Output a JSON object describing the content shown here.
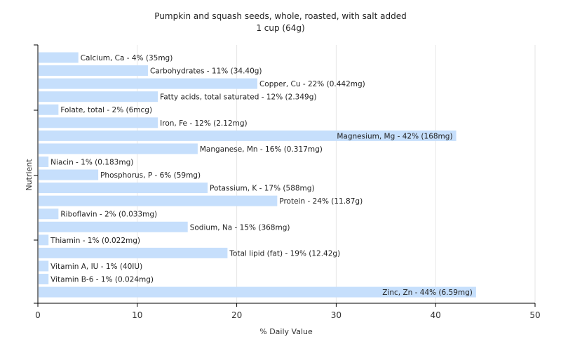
{
  "chart_data": {
    "type": "bar",
    "orientation": "horizontal",
    "title": "Pumpkin and squash seeds, whole, roasted, with salt added",
    "subtitle": "1 cup (64g)",
    "xlabel": "% Daily Value",
    "ylabel": "Nutrient",
    "xlim": [
      0,
      50
    ],
    "xticks": [
      0,
      10,
      20,
      30,
      40,
      50
    ],
    "grid": true,
    "bar_color": "#c6dffc",
    "categories": [
      "Calcium, Ca",
      "Carbohydrates",
      "Copper, Cu",
      "Fatty acids, total saturated",
      "Folate, total",
      "Iron, Fe",
      "Magnesium, Mg",
      "Manganese, Mn",
      "Niacin",
      "Phosphorus, P",
      "Potassium, K",
      "Protein",
      "Riboflavin",
      "Sodium, Na",
      "Thiamin",
      "Total lipid (fat)",
      "Vitamin A, IU",
      "Vitamin B-6",
      "Zinc, Zn"
    ],
    "values": [
      4,
      11,
      22,
      12,
      2,
      12,
      42,
      16,
      1,
      6,
      17,
      24,
      2,
      15,
      1,
      19,
      1,
      1,
      44
    ],
    "labels": [
      "Calcium, Ca - 4% (35mg)",
      "Carbohydrates - 11% (34.40g)",
      "Copper, Cu - 22% (0.442mg)",
      "Fatty acids, total saturated - 12% (2.349g)",
      "Folate, total - 2% (6mcg)",
      "Iron, Fe - 12% (2.12mg)",
      "Magnesium, Mg - 42% (168mg)",
      "Manganese, Mn - 16% (0.317mg)",
      "Niacin - 1% (0.183mg)",
      "Phosphorus, P - 6% (59mg)",
      "Potassium, K - 17% (588mg)",
      "Protein - 24% (11.87g)",
      "Riboflavin - 2% (0.033mg)",
      "Sodium, Na - 15% (368mg)",
      "Thiamin - 1% (0.022mg)",
      "Total lipid (fat) - 19% (12.42g)",
      "Vitamin A, IU - 1% (40IU)",
      "Vitamin B-6 - 1% (0.024mg)",
      "Zinc, Zn - 44% (6.59mg)"
    ]
  }
}
